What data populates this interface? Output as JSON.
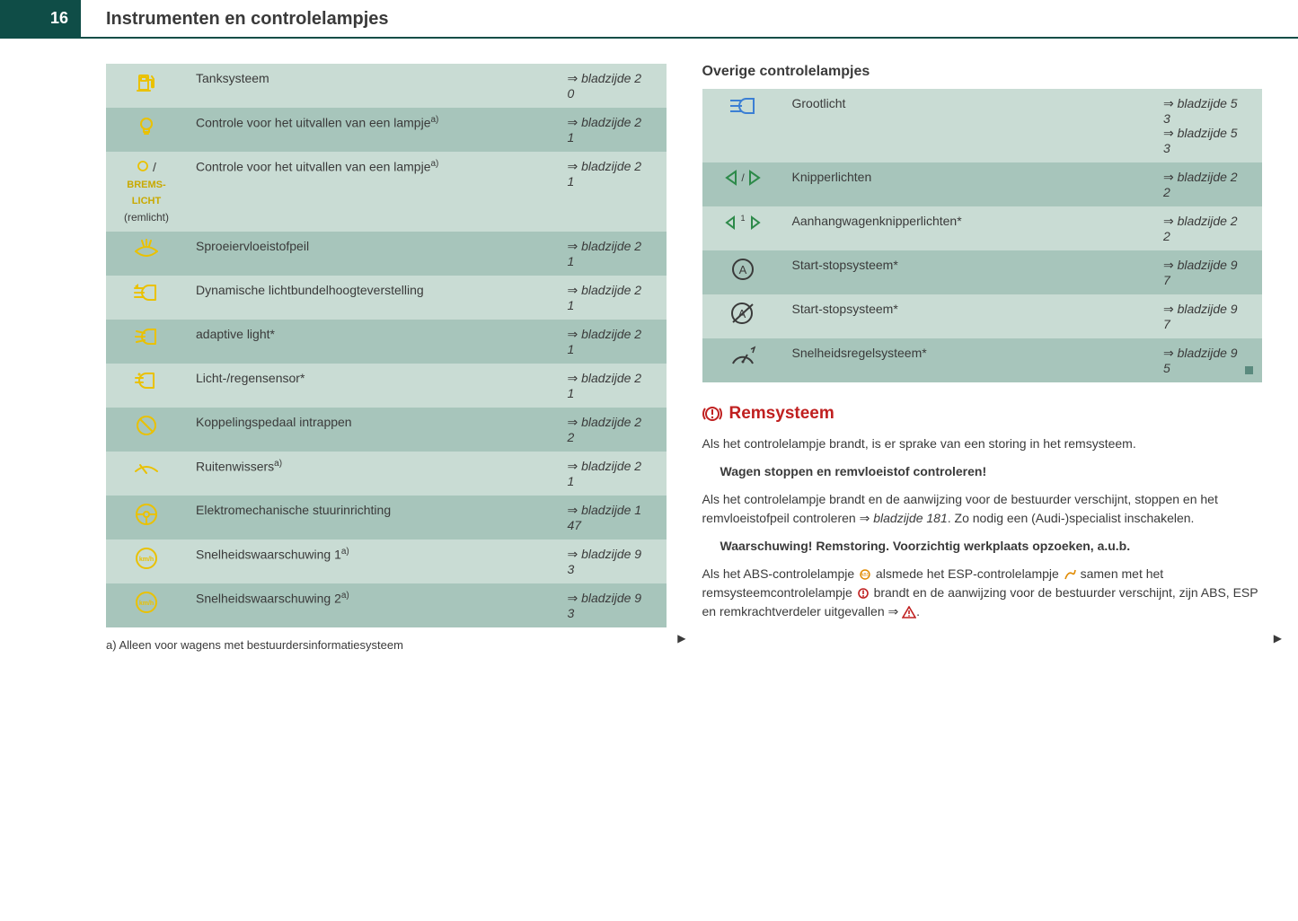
{
  "page_number": "16",
  "page_title": "Instrumenten en controlelampjes",
  "colors": {
    "header_bg": "#0f4d47",
    "row_odd": "#c9dcd4",
    "row_even": "#a7c5bb",
    "icon_yellow": "#eac100",
    "icon_blue": "#3b7fd4",
    "icon_green": "#2d8a4a",
    "icon_gray": "#3a3a3a",
    "red": "#c02020",
    "orange": "#e08a00"
  },
  "table_left": [
    {
      "icon": "fuel",
      "icon_color": "#eac100",
      "desc": "Tanksysteem",
      "ref": "bladzijde 20"
    },
    {
      "icon": "bulb",
      "icon_color": "#eac100",
      "desc": "Controle voor het uitvallen van een lampje",
      "sup": "a)",
      "ref": "bladzijde 21"
    },
    {
      "icon": "bremslicht",
      "icon_text_top": "/",
      "icon_text": "BREMS-LICHT",
      "icon_sub": "(remlicht)",
      "desc": "Controle voor het uitvallen van een lampje",
      "sup": "a)",
      "ref": "bladzijde 21"
    },
    {
      "icon": "washer",
      "icon_color": "#eac100",
      "desc": "Sproeiervloeistofpeil",
      "ref": "bladzijde 21"
    },
    {
      "icon": "headlight-level",
      "icon_color": "#eac100",
      "desc": "Dynamische lichtbundelhoogteverstelling",
      "ref": "bladzijde 21"
    },
    {
      "icon": "adaptive-light",
      "icon_color": "#eac100",
      "desc": "adaptive light*",
      "ref": "bladzijde 21"
    },
    {
      "icon": "light-rain",
      "icon_color": "#eac100",
      "desc": "Licht-/regensensor*",
      "ref": "bladzijde 21"
    },
    {
      "icon": "clutch",
      "icon_color": "#eac100",
      "desc": "Koppelingspedaal intrappen",
      "ref": "bladzijde 22"
    },
    {
      "icon": "wiper",
      "icon_color": "#eac100",
      "desc": "Ruitenwissers",
      "sup": "a)",
      "ref": "bladzijde 21"
    },
    {
      "icon": "steering",
      "icon_color": "#eac100",
      "desc": "Elektromechanische stuurinrichting",
      "ref": "bladzijde 147"
    },
    {
      "icon": "speed-1",
      "icon_color": "#eac100",
      "desc": "Snelheidswaarschuwing 1",
      "sup": "a)",
      "ref": "bladzijde 93"
    },
    {
      "icon": "speed-2",
      "icon_color": "#eac100",
      "desc": "Snelheidswaarschuwing 2",
      "sup": "a)",
      "ref": "bladzijde 93"
    }
  ],
  "footnote": "a)   Alleen voor wagens met bestuurdersinformatiesysteem",
  "subhead_right": "Overige controlelampjes",
  "table_right": [
    {
      "icon": "high-beam",
      "icon_color": "#3b7fd4",
      "desc": "Grootlicht",
      "refs": [
        "bladzijde 53",
        "bladzijde 53"
      ]
    },
    {
      "icon": "turn-signals",
      "icon_color": "#2d8a4a",
      "desc": "Knipperlichten",
      "refs": [
        "bladzijde 22"
      ]
    },
    {
      "icon": "trailer-signals",
      "icon_color": "#2d8a4a",
      "desc": "Aanhangwagenknipperlichten*",
      "refs": [
        "bladzijde 22"
      ]
    },
    {
      "icon": "start-stop-a",
      "icon_color": "#3a3a3a",
      "desc": "Start-stopsysteem*",
      "refs": [
        "bladzijde 97"
      ]
    },
    {
      "icon": "start-stop-off",
      "icon_color": "#3a3a3a",
      "desc": "Start-stopsysteem*",
      "refs": [
        "bladzijde 97"
      ]
    },
    {
      "icon": "cruise",
      "icon_color": "#3a3a3a",
      "desc": "Snelheidsregelsysteem*",
      "refs": [
        "bladzijde 95"
      ]
    }
  ],
  "section": {
    "title": "Remsysteem",
    "para1": "Als het controlelampje brandt, is er sprake van een storing in het remsysteem.",
    "warn1": "Wagen stoppen en remvloeistof controleren!",
    "para2a": "Als het controlelampje brandt en de aanwijzing voor de bestuurder verschijnt, stoppen en het remvloeistofpeil controleren ",
    "para2b": "bladzijde 181",
    "para2c": ". Zo nodig een (Audi-)specialist inschakelen.",
    "warn2": "Waarschuwing! Remstoring. Voorzichtig werkplaats opzoeken, a.u.b.",
    "para3a": "Als het ABS-controlelampje ",
    "para3b": " alsmede het ESP-controlelampje ",
    "para3c": " samen met het remsysteemcontrolelampje ",
    "para3d": " brandt en de aanwijzing voor de bestuurder verschijnt, zijn ABS, ESP en remkrachtverdeler uitgevallen ⇒ ",
    "para3e": "."
  }
}
